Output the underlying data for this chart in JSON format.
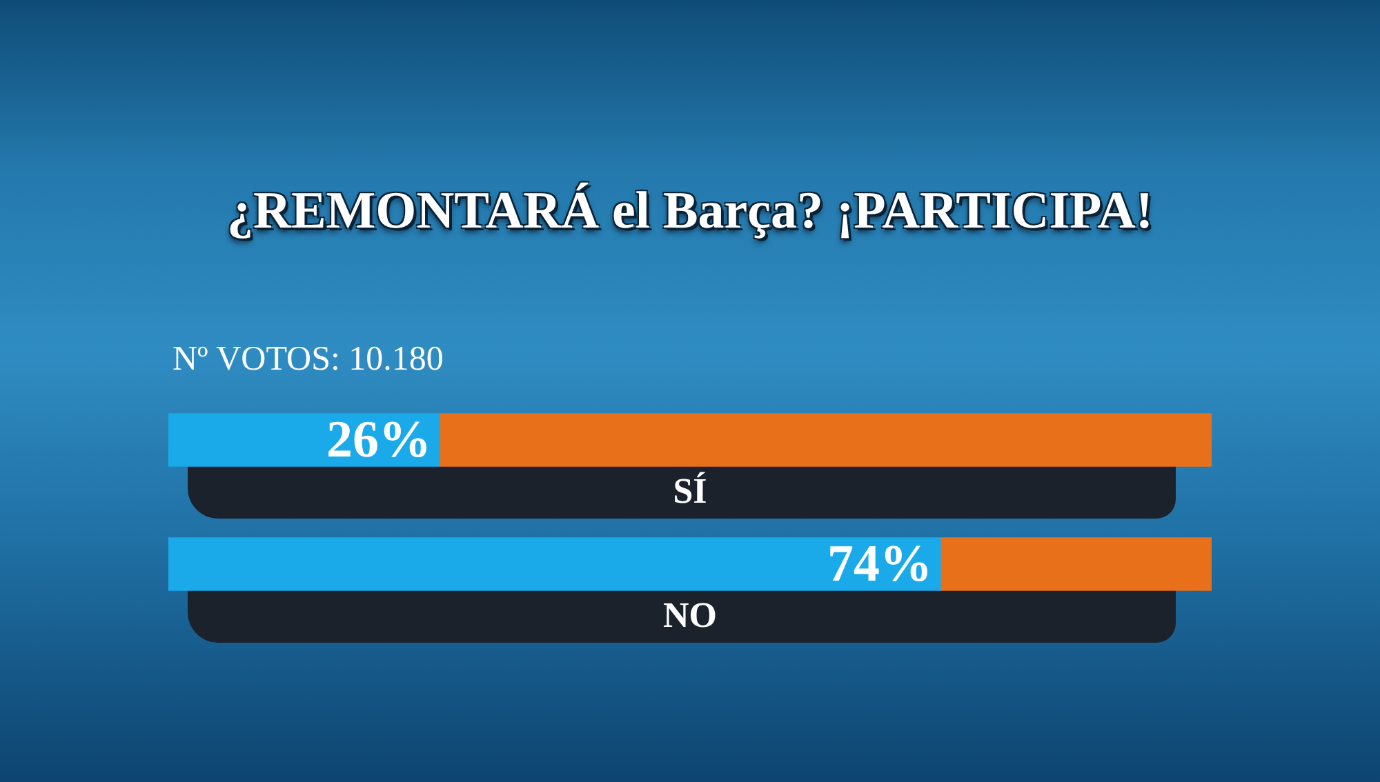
{
  "chart_data": {
    "type": "bar",
    "orientation": "horizontal",
    "stacked": true,
    "title": "¿REMONTARÁ el Barça? ¡PARTICIPA!",
    "annotations": [
      "Nº VOTOS: 10.180"
    ],
    "categories": [
      "SÍ",
      "NO"
    ],
    "series": [
      {
        "color": "#1aa9e9",
        "values": [
          26,
          74
        ],
        "value_labels": [
          "26%",
          "74%"
        ]
      },
      {
        "color": "#e8701a",
        "values": [
          74,
          26
        ]
      }
    ],
    "xlim": [
      0,
      100
    ],
    "tick_labels": "y"
  }
}
